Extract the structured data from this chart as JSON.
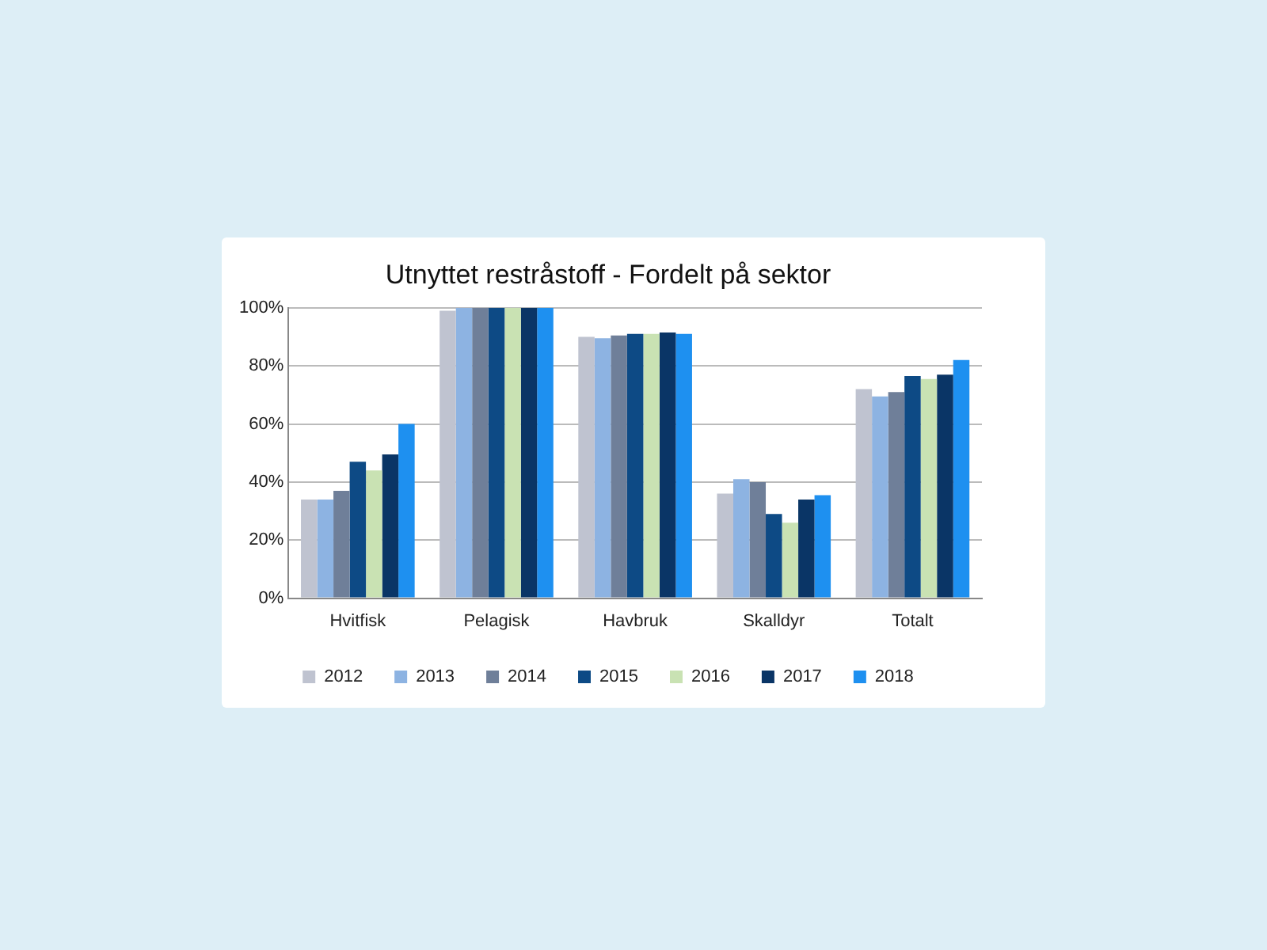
{
  "chart_data": {
    "type": "bar",
    "title": "Utnyttet restråstoff - Fordelt på sektor",
    "categories": [
      "Hvitfisk",
      "Pelagisk",
      "Havbruk",
      "Skalldyr",
      "Totalt"
    ],
    "series": [
      {
        "name": "2012",
        "color": "#bfc3d0",
        "values": [
          34,
          99,
          90,
          36,
          72
        ]
      },
      {
        "name": "2013",
        "color": "#8db3e2",
        "values": [
          34,
          100,
          89.5,
          41,
          69.5
        ]
      },
      {
        "name": "2014",
        "color": "#6f7f99",
        "values": [
          37,
          100,
          90.5,
          40,
          71
        ]
      },
      {
        "name": "2015",
        "color": "#0d4a85",
        "values": [
          47,
          100,
          91,
          29,
          76.5
        ]
      },
      {
        "name": "2016",
        "color": "#c9e2b3",
        "values": [
          44,
          100,
          91,
          26,
          75.5
        ]
      },
      {
        "name": "2017",
        "color": "#0a3566",
        "values": [
          49.5,
          100,
          91.5,
          34,
          77
        ]
      },
      {
        "name": "2018",
        "color": "#1e90f0",
        "values": [
          60,
          100,
          91,
          35.5,
          82
        ]
      }
    ],
    "ylim": [
      0,
      100
    ],
    "yticks": [
      {
        "value": 0,
        "label": "0%"
      },
      {
        "value": 20,
        "label": "20%"
      },
      {
        "value": 40,
        "label": "40%"
      },
      {
        "value": 60,
        "label": "60%"
      },
      {
        "value": 80,
        "label": "80%"
      },
      {
        "value": 100,
        "label": "100%"
      }
    ],
    "grid": "y",
    "legend": "bottom"
  }
}
